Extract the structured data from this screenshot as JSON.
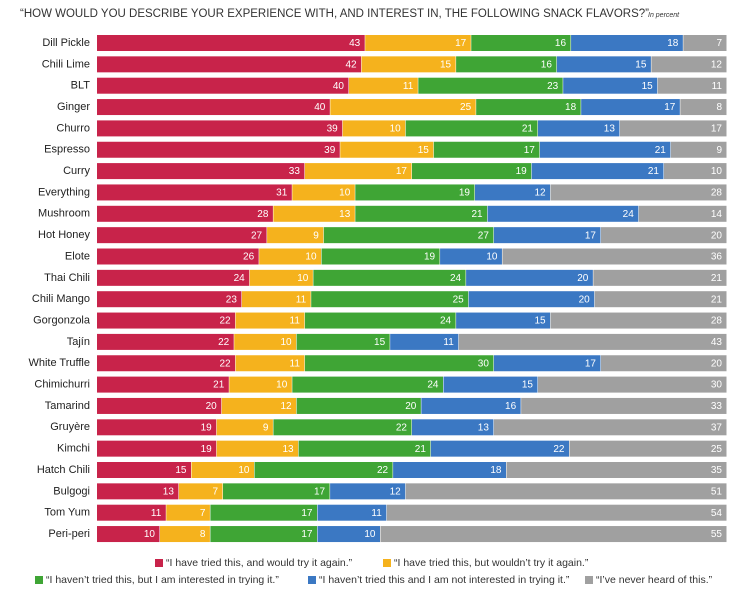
{
  "chart_data": {
    "type": "stacked-bar",
    "orientation": "horizontal",
    "stacking": "normalized",
    "title": "“HOW WOULD YOU DESCRIBE YOUR EXPERIENCE WITH, AND INTEREST IN, THE FOLLOWING SNACK FLAVORS?”",
    "subtitle": "In percent",
    "categories": [
      "Dill Pickle",
      "Chili Lime",
      "BLT",
      "Ginger",
      "Churro",
      "Espresso",
      "Curry",
      "Everything",
      "Mushroom",
      "Hot Honey",
      "Elote",
      "Thai Chili",
      "Chili Mango",
      "Gorgonzola",
      "Tajín",
      "White Truffle",
      "Chimichurri",
      "Tamarind",
      "Gruyère",
      "Kimchi",
      "Hatch Chili",
      "Bulgogi",
      "Tom Yum",
      "Peri-peri"
    ],
    "series": [
      {
        "name": "“I have tried this, and would try it again.”",
        "color": "#c8234a",
        "values": [
          43,
          42,
          40,
          40,
          39,
          39,
          33,
          31,
          28,
          27,
          26,
          24,
          23,
          22,
          22,
          22,
          21,
          20,
          19,
          19,
          15,
          13,
          11,
          10
        ]
      },
      {
        "name": "“I have tried this, but wouldn’t try it again.”",
        "color": "#f5b21d",
        "values": [
          17,
          15,
          11,
          25,
          10,
          15,
          17,
          10,
          13,
          9,
          10,
          10,
          11,
          11,
          10,
          11,
          10,
          12,
          9,
          13,
          10,
          7,
          7,
          8
        ]
      },
      {
        "name": "“I haven’t tried this, but I am interested in trying it.”",
        "color": "#3fa535",
        "values": [
          16,
          16,
          23,
          18,
          21,
          17,
          19,
          19,
          21,
          27,
          19,
          24,
          25,
          24,
          15,
          30,
          24,
          20,
          22,
          21,
          22,
          17,
          17,
          17
        ]
      },
      {
        "name": "“I haven’t tried this and I am not interested in trying it.”",
        "color": "#3b78c3",
        "values": [
          18,
          15,
          15,
          17,
          13,
          21,
          21,
          12,
          24,
          17,
          10,
          20,
          20,
          15,
          11,
          17,
          15,
          16,
          13,
          22,
          18,
          12,
          11,
          10
        ]
      },
      {
        "name": "“I’ve never heard of this.”",
        "color": "#a0a0a0",
        "values": [
          7,
          12,
          11,
          8,
          17,
          9,
          10,
          28,
          14,
          20,
          36,
          21,
          21,
          28,
          43,
          20,
          30,
          33,
          37,
          25,
          35,
          51,
          54,
          55
        ]
      }
    ]
  }
}
